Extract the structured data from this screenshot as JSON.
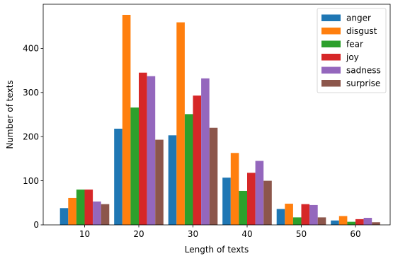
{
  "chart_data": {
    "type": "bar",
    "xlabel": "Length of texts",
    "ylabel": "Number of texts",
    "categories": [
      "10",
      "20",
      "30",
      "40",
      "50",
      "60"
    ],
    "x_ticks": [
      "10",
      "20",
      "30",
      "40",
      "50",
      "60"
    ],
    "y_ticks": [
      "0",
      "100",
      "200",
      "300",
      "400"
    ],
    "ylim": [
      0,
      500
    ],
    "grid": false,
    "legend_position": "top-right",
    "series": [
      {
        "name": "anger",
        "color": "#1f77b4",
        "values": [
          38,
          218,
          203,
          107,
          36,
          10
        ]
      },
      {
        "name": "disgust",
        "color": "#ff7f0e",
        "values": [
          61,
          476,
          459,
          163,
          48,
          20
        ]
      },
      {
        "name": "fear",
        "color": "#2ca02c",
        "values": [
          80,
          266,
          251,
          77,
          17,
          7
        ]
      },
      {
        "name": "joy",
        "color": "#d62728",
        "values": [
          80,
          345,
          293,
          118,
          47,
          13
        ]
      },
      {
        "name": "sadness",
        "color": "#9467bd",
        "values": [
          53,
          337,
          332,
          145,
          45,
          16
        ]
      },
      {
        "name": "surprise",
        "color": "#8c564b",
        "values": [
          47,
          193,
          220,
          100,
          17,
          6
        ]
      }
    ]
  }
}
